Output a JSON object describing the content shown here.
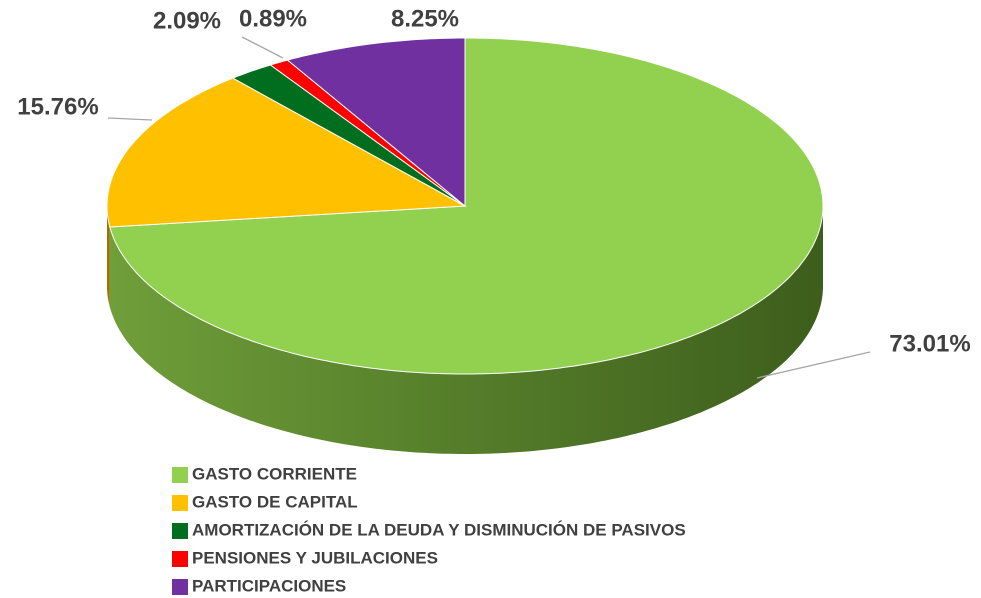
{
  "chart_data": {
    "type": "pie",
    "categories": [
      "GASTO CORRIENTE",
      "GASTO DE CAPITAL",
      "AMORTIZACIÓN DE LA DEUDA Y DISMINUCIÓN DE PASIVOS",
      "PENSIONES Y JUBILACIONES",
      "PARTICIPACIONES"
    ],
    "values": [
      73.01,
      15.76,
      2.09,
      0.89,
      8.25
    ],
    "value_labels": [
      "73.01%",
      "15.76%",
      "2.09%",
      "0.89%",
      "8.25%"
    ],
    "colors": [
      "#92d050",
      "#ffc000",
      "#006e1e",
      "#ff0000",
      "#7030a0"
    ],
    "legend": "bottom"
  }
}
